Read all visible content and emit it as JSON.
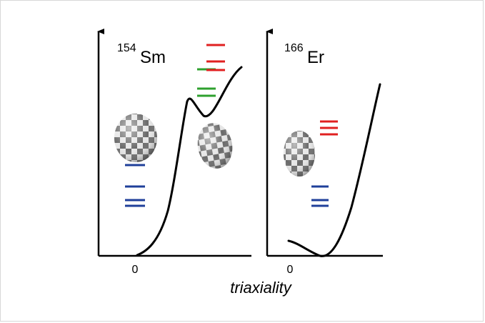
{
  "left_panel": {
    "nucleus_mass": "154",
    "nucleus_symbol": "Sm",
    "zero_label": "0"
  },
  "right_panel": {
    "nucleus_mass": "166",
    "nucleus_symbol": "Er",
    "zero_label": "0"
  },
  "x_axis_label": "triaxiality",
  "colors": {
    "blue_levels": "#1f3f9a",
    "green_levels": "#2ea02e",
    "red_levels": "#e02020",
    "curve": "#000000",
    "checker_light": "#e6e6e6",
    "checker_dark": "#6a6a6a"
  }
}
